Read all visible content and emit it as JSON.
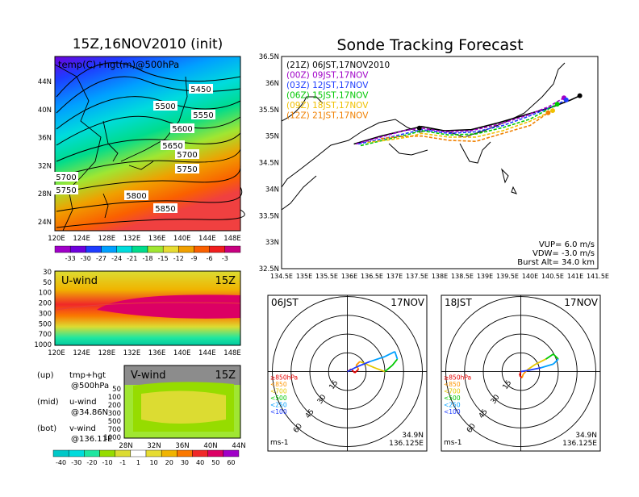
{
  "left_title": "15Z,16NOV2010 (init)",
  "right_title": "Sonde Tracking Forecast",
  "map500": {
    "label": "temp(C)+hgt(m)@500hPa",
    "lat_ticks": [
      "44N",
      "40N",
      "36N",
      "32N",
      "28N",
      "24N"
    ],
    "lon_ticks": [
      "120E",
      "124E",
      "128E",
      "132E",
      "136E",
      "140E",
      "144E",
      "148E"
    ],
    "contour_labels": [
      "5450",
      "5500",
      "5550",
      "5600",
      "5650",
      "5700",
      "5750",
      "5700",
      "5750",
      "5800",
      "5850"
    ],
    "colorbar": [
      "-33",
      "-30",
      "-27",
      "-24",
      "-21",
      "-18",
      "-15",
      "-12",
      "-9",
      "-6",
      "-3"
    ],
    "colorbar_colors": [
      "#a000c8",
      "#6e00dc",
      "#1e3cff",
      "#00a0ff",
      "#00dcdc",
      "#00dc8c",
      "#a0e632",
      "#e6dc32",
      "#f0a000",
      "#fa6000",
      "#f01e1e",
      "#c80080"
    ]
  },
  "uwind": {
    "label": "U-wind",
    "time": "15Z",
    "y_ticks": [
      "30",
      "50",
      "100",
      "200",
      "300",
      "500",
      "700",
      "1000"
    ],
    "x_ticks": [
      "120E",
      "124E",
      "128E",
      "132E",
      "136E",
      "140E",
      "144E",
      "148E"
    ]
  },
  "vwind": {
    "label": "V-wind",
    "time": "15Z",
    "y_ticks": [
      "50",
      "100",
      "200",
      "300",
      "500",
      "700",
      "1000"
    ],
    "x_ticks": [
      "28N",
      "32N",
      "36N",
      "40N",
      "44N"
    ]
  },
  "legend_left": [
    {
      "k": "(up)",
      "a": "tmp+hgt",
      "b": "@500hPa"
    },
    {
      "k": "(mid)",
      "a": "u-wind",
      "b": "@34.86N"
    },
    {
      "k": "(bot)",
      "a": "v-wind",
      "b": "@136.11E"
    }
  ],
  "wind_colorbar": [
    "-40",
    "-30",
    "-20",
    "-10",
    "-1",
    "1",
    "10",
    "20",
    "30",
    "40",
    "50",
    "60"
  ],
  "wind_colorbar_colors": [
    "#00c8c8",
    "#00dcdc",
    "#1ee6a0",
    "#96dc00",
    "#dcdc32",
    "#ffffff",
    "#e6dc32",
    "#f0b400",
    "#fa7800",
    "#f02828",
    "#dc0064",
    "#a000c8"
  ],
  "track": {
    "launches": [
      {
        "label": "(21Z)  06JST,17NOV2010",
        "color": "#000000"
      },
      {
        "label": "(00Z)  09JST,17NOV",
        "color": "#a000c8"
      },
      {
        "label": "(03Z)  12JST,17NOV",
        "color": "#1e3cff"
      },
      {
        "label": "(06Z)  15JST,17NOV",
        "color": "#00c800"
      },
      {
        "label": "(09Z)  18JST,17NOV",
        "color": "#f0c000"
      },
      {
        "label": "(12Z)  21JST,17NOV",
        "color": "#f08000"
      }
    ],
    "lat_ticks": [
      "36.5N",
      "36N",
      "35.5N",
      "35N",
      "34.5N",
      "34N",
      "33.5N",
      "33N",
      "32.5N"
    ],
    "lon_ticks": [
      "134.5E",
      "135E",
      "135.5E",
      "136E",
      "136.5E",
      "137E",
      "137.5E",
      "138E",
      "138.5E",
      "139E",
      "139.5E",
      "140E",
      "140.5E",
      "141E",
      "141.5E"
    ],
    "info": [
      "VUP=  6.0  m/s",
      "VDW= -3.0  m/s",
      "Burst Alt=  34.0  km"
    ]
  },
  "chart_data": [
    {
      "type": "line",
      "title": "Sonde Tracking Forecast",
      "xlim": [
        134.5,
        141.5
      ],
      "ylim": [
        32.5,
        36.5
      ],
      "series": [
        {
          "name": "(21Z)  06JST,17NOV2010",
          "lon": [
            136.1,
            136.7,
            137.3,
            137.6,
            138.1,
            138.7,
            139.3,
            139.9,
            140.5,
            140.9,
            141.1
          ],
          "lat": [
            34.85,
            35.0,
            35.12,
            35.18,
            35.1,
            35.12,
            35.25,
            35.4,
            35.55,
            35.68,
            35.76
          ]
        },
        {
          "name": "(00Z)  09JST,17NOV",
          "lon": [
            136.15,
            136.7,
            137.2,
            137.6,
            138.1,
            138.7,
            139.3,
            139.9,
            140.4,
            140.75
          ],
          "lat": [
            34.85,
            34.98,
            35.1,
            35.15,
            35.08,
            35.1,
            35.22,
            35.38,
            35.55,
            35.72
          ]
        },
        {
          "name": "(03Z)  12JST,17NOV",
          "lon": [
            136.2,
            136.8,
            137.3,
            137.6,
            138.2,
            138.8,
            139.4,
            139.9,
            140.4,
            140.8
          ],
          "lat": [
            34.85,
            34.96,
            35.06,
            35.12,
            35.05,
            35.08,
            35.2,
            35.35,
            35.52,
            35.68
          ]
        },
        {
          "name": "(06Z)  15JST,17NOV",
          "lon": [
            136.25,
            136.8,
            137.3,
            137.6,
            138.2,
            138.8,
            139.4,
            140.0,
            140.6
          ],
          "lat": [
            34.82,
            34.93,
            35.03,
            35.1,
            35.02,
            35.04,
            35.16,
            35.32,
            35.6
          ]
        },
        {
          "name": "(09Z)  18JST,17NOV",
          "lon": [
            136.4,
            136.9,
            137.3,
            137.6,
            138.2,
            138.8,
            139.4,
            140.0,
            140.5
          ],
          "lat": [
            34.88,
            34.93,
            34.98,
            35.05,
            34.98,
            34.98,
            35.1,
            35.28,
            35.48
          ]
        },
        {
          "name": "(12Z)  21JST,17NOV",
          "lon": [
            136.7,
            137.1,
            137.6,
            138.2,
            138.8,
            139.4,
            140.0,
            140.4
          ],
          "lat": [
            34.95,
            34.99,
            35.0,
            34.92,
            34.9,
            35.05,
            35.2,
            35.44
          ]
        }
      ]
    },
    {
      "type": "line",
      "title": "06JST",
      "date": "17NOV",
      "speed_rings": [
        "15",
        "30",
        "45",
        "60"
      ],
      "levels": [
        "≥850hPa",
        "<850",
        "<700",
        "<500",
        "<250",
        "<100"
      ],
      "level_colors": [
        "#e60000",
        "#ff9600",
        "#e6c800",
        "#00c800",
        "#00a0ff",
        "#1e3cff"
      ],
      "unit": "ms-1",
      "location": [
        "34.9N",
        "136.125E"
      ],
      "points": [
        [
          0,
          0
        ],
        [
          3,
          2
        ],
        [
          6,
          -1
        ],
        [
          9,
          2
        ],
        [
          7,
          5
        ],
        [
          10,
          8
        ],
        [
          15,
          6
        ],
        [
          22,
          3
        ],
        [
          30,
          0
        ],
        [
          36,
          5
        ],
        [
          40,
          10
        ],
        [
          38,
          16
        ],
        [
          30,
          12
        ],
        [
          18,
          8
        ],
        [
          8,
          4
        ],
        [
          0,
          0
        ]
      ]
    },
    {
      "type": "line",
      "title": "18JST",
      "date": "17NOV",
      "speed_rings": [
        "15",
        "30",
        "45",
        "60"
      ],
      "levels": [
        "≥850hPa",
        "<850",
        "<700",
        "<500",
        "<250",
        "<100"
      ],
      "level_colors": [
        "#e60000",
        "#ff9600",
        "#e6c800",
        "#00c800",
        "#00a0ff",
        "#1e3cff"
      ],
      "unit": "ms-1",
      "location": [
        "34.9N",
        "136.125E"
      ],
      "points": [
        [
          0,
          0
        ],
        [
          -1,
          -3
        ],
        [
          1,
          -5
        ],
        [
          2,
          -2
        ],
        [
          6,
          2
        ],
        [
          12,
          6
        ],
        [
          20,
          10
        ],
        [
          26,
          14
        ],
        [
          30,
          10
        ],
        [
          26,
          6
        ],
        [
          16,
          3
        ],
        [
          6,
          1
        ],
        [
          0,
          0
        ]
      ]
    }
  ]
}
